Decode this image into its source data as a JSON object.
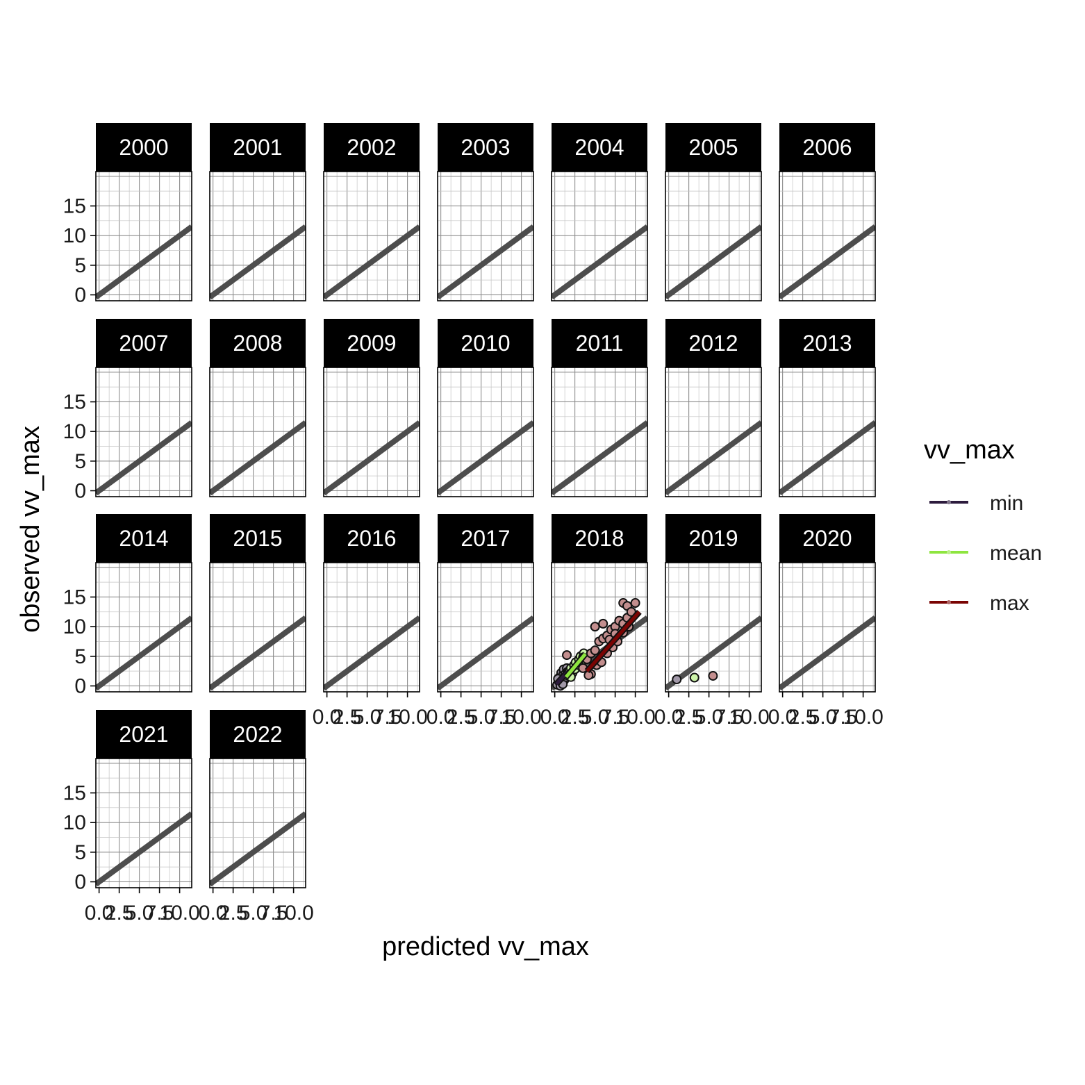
{
  "chart_data": {
    "type": "scatter",
    "facet_by": "year",
    "panels": [
      "2000",
      "2001",
      "2002",
      "2003",
      "2004",
      "2005",
      "2006",
      "2007",
      "2008",
      "2009",
      "2010",
      "2011",
      "2012",
      "2013",
      "2014",
      "2015",
      "2016",
      "2017",
      "2018",
      "2019",
      "2020",
      "2021",
      "2022"
    ],
    "xlabel": "predicted vv_max",
    "ylabel": "observed vv_max",
    "xlim": [
      -0.4,
      11.5
    ],
    "ylim": [
      -1.0,
      20.8
    ],
    "x_ticks": [
      0,
      2.5,
      5,
      7.5,
      10
    ],
    "x_tick_labels": [
      "0.0",
      "2.5",
      "5.0",
      "7.5",
      "10.0"
    ],
    "y_ticks": [
      0,
      5,
      10,
      15
    ],
    "y_tick_labels": [
      "0",
      "5",
      "10",
      "15"
    ],
    "reference_line": {
      "slope": 1,
      "intercept": 0,
      "color": "#4d4d4d"
    },
    "grid": true,
    "legend": {
      "title": "vv_max",
      "position": "right",
      "entries": [
        {
          "label": "min",
          "color": "#2d1b3d"
        },
        {
          "label": "mean",
          "color": "#8ee53f"
        },
        {
          "label": "max",
          "color": "#7a0403"
        }
      ]
    },
    "series": [
      {
        "panel": "2018",
        "group": "min",
        "color": "#2d1b3d",
        "points": [
          [
            0.3,
            0.2
          ],
          [
            0.5,
            0.8
          ],
          [
            0.6,
            1.5
          ],
          [
            0.8,
            2.2
          ],
          [
            0.9,
            0.5
          ],
          [
            1.0,
            1.8
          ],
          [
            1.1,
            2.8
          ],
          [
            1.2,
            1.0
          ],
          [
            1.3,
            2.0
          ],
          [
            1.5,
            3.0
          ],
          [
            0.4,
            1.2
          ],
          [
            0.7,
            0.0
          ],
          [
            1.0,
            0.3
          ],
          [
            1.4,
            1.5
          ],
          [
            1.6,
            2.4
          ]
        ],
        "fit": [
          [
            0.2,
            0.3
          ],
          [
            1.6,
            2.4
          ]
        ]
      },
      {
        "panel": "2018",
        "group": "mean",
        "color": "#8ee53f",
        "points": [
          [
            1.5,
            1.8
          ],
          [
            1.8,
            2.5
          ],
          [
            2.0,
            3.0
          ],
          [
            2.2,
            2.2
          ],
          [
            2.4,
            3.5
          ],
          [
            2.6,
            4.0
          ],
          [
            2.8,
            3.2
          ],
          [
            3.0,
            4.5
          ],
          [
            3.2,
            5.0
          ],
          [
            3.4,
            4.2
          ],
          [
            3.6,
            5.5
          ],
          [
            2.0,
            1.5
          ],
          [
            2.5,
            2.8
          ],
          [
            3.0,
            3.5
          ],
          [
            3.5,
            4.8
          ]
        ],
        "fit": [
          [
            1.4,
            1.5
          ],
          [
            3.8,
            5.4
          ]
        ]
      },
      {
        "panel": "2018",
        "group": "max",
        "color": "#7a0403",
        "points": [
          [
            3.5,
            3.0
          ],
          [
            4.0,
            4.5
          ],
          [
            4.5,
            5.5
          ],
          [
            5.0,
            6.0
          ],
          [
            5.5,
            7.5
          ],
          [
            6.0,
            8.0
          ],
          [
            6.5,
            8.5
          ],
          [
            7.0,
            9.5
          ],
          [
            7.5,
            10.0
          ],
          [
            8.0,
            11.0
          ],
          [
            8.5,
            10.5
          ],
          [
            9.0,
            11.5
          ],
          [
            4.5,
            2.0
          ],
          [
            5.2,
            3.5
          ],
          [
            5.8,
            4.0
          ],
          [
            6.5,
            5.5
          ],
          [
            7.2,
            6.5
          ],
          [
            7.8,
            7.5
          ],
          [
            8.5,
            9.0
          ],
          [
            9.2,
            10.0
          ],
          [
            5.0,
            10.0
          ],
          [
            6.0,
            10.5
          ],
          [
            8.5,
            14.0
          ],
          [
            9.0,
            13.5
          ],
          [
            10.0,
            14.0
          ],
          [
            9.5,
            12.5
          ],
          [
            4.2,
            1.8
          ],
          [
            1.5,
            5.2
          ],
          [
            6.8,
            7.8
          ],
          [
            7.5,
            8.8
          ]
        ],
        "fit": [
          [
            4.0,
            2.5
          ],
          [
            10.5,
            12.5
          ]
        ]
      },
      {
        "panel": "2019",
        "group": "min",
        "color": "#2d1b3d",
        "points": [
          [
            1.0,
            1.1
          ]
        ],
        "fit": []
      },
      {
        "panel": "2019",
        "group": "mean",
        "color": "#8ee53f",
        "points": [
          [
            3.2,
            1.4
          ]
        ],
        "fit": []
      },
      {
        "panel": "2019",
        "group": "max",
        "color": "#7a0403",
        "points": [
          [
            5.5,
            1.7
          ]
        ],
        "fit": []
      }
    ]
  }
}
